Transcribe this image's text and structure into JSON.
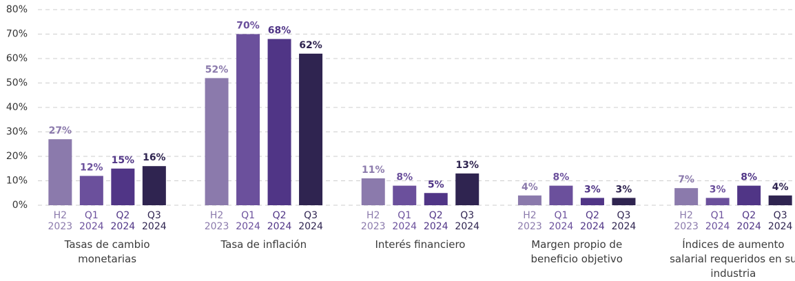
{
  "chart_data": {
    "type": "bar",
    "categories": [
      "Tasas de cambio monetarias",
      "Tasa de inflación",
      "Interés financiero",
      "Margen propio de beneficio objetivo",
      "Índices de aumento salarial requeridos en su industria"
    ],
    "series": [
      {
        "name": "H2 2023",
        "color": "#8b7aac",
        "values": [
          27,
          52,
          11,
          4,
          7
        ],
        "value_labels": [
          "27%",
          "52%",
          "11%",
          "4%",
          "7%"
        ]
      },
      {
        "name": "Q1 2024",
        "color": "#6b509c",
        "values": [
          12,
          70,
          8,
          8,
          3
        ],
        "value_labels": [
          "12%",
          "70%",
          "8%",
          "8%",
          "3%"
        ]
      },
      {
        "name": "Q2 2024",
        "color": "#503586",
        "values": [
          15,
          68,
          5,
          3,
          8
        ],
        "value_labels": [
          "15%",
          "68%",
          "5%",
          "3%",
          "8%"
        ]
      },
      {
        "name": "Q3 2024",
        "color": "#2f2450",
        "values": [
          16,
          62,
          13,
          3,
          4
        ],
        "value_labels": [
          "16%",
          "62%",
          "13%",
          "3%",
          "4%"
        ]
      }
    ],
    "ylim": [
      0,
      80
    ],
    "yticks": [
      {
        "value": 0,
        "label": "0%"
      },
      {
        "value": 10,
        "label": "10%"
      },
      {
        "value": 20,
        "label": "20%"
      },
      {
        "value": 30,
        "label": "30%"
      },
      {
        "value": 40,
        "label": "40%"
      },
      {
        "value": 50,
        "label": "50%"
      },
      {
        "value": 60,
        "label": "60%"
      },
      {
        "value": 70,
        "label": "70%"
      },
      {
        "value": 80,
        "label": "80%"
      }
    ],
    "grid": true
  }
}
